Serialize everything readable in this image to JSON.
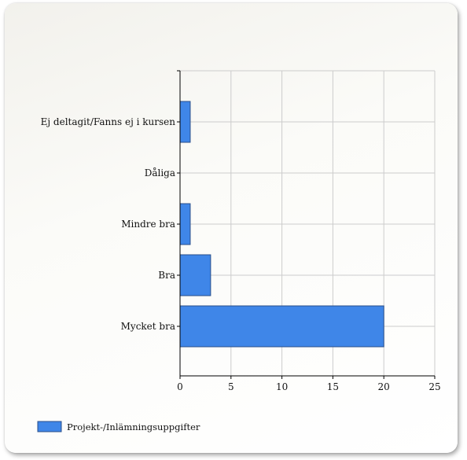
{
  "chart_data": {
    "type": "bar",
    "orientation": "horizontal",
    "categories": [
      "Ej deltagit/Fanns ej i kursen",
      "Dåliga",
      "Mindre bra",
      "Bra",
      "Mycket bra"
    ],
    "series": [
      {
        "name": "Projekt-/Inlämningsuppgifter",
        "values": [
          1,
          0,
          1,
          3,
          20
        ]
      }
    ],
    "xlim": [
      0,
      25
    ],
    "xticks": [
      0,
      5,
      10,
      15,
      20,
      25
    ],
    "grid": true,
    "legend_position": "bottom-left",
    "colors": {
      "bar": "#3f86e8",
      "bar_stroke": "#2a4f8a",
      "grid": "#cccccc",
      "axis": "#000000"
    }
  }
}
